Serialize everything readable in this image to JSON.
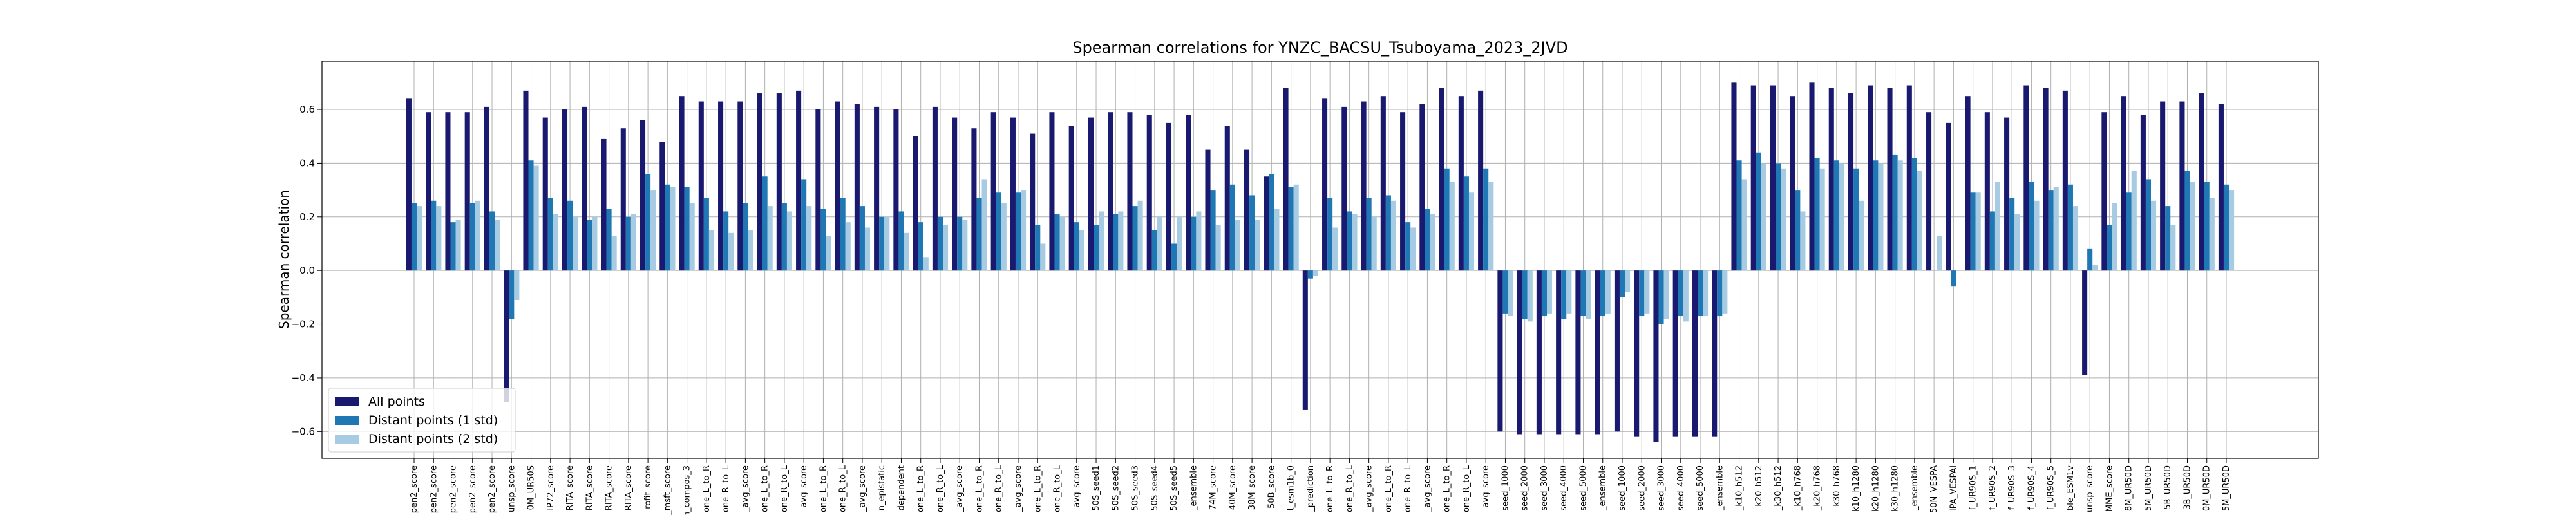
{
  "chart_data": {
    "type": "bar",
    "title": "Spearman correlations for YNZC_BACSU_Tsuboyama_2023_2JVD",
    "ylabel": "Spearman correlation",
    "categories": [
      "pen2_score",
      "pen2_score",
      "pen2_score",
      "pen2_score",
      "pen2_score",
      "unsp_score",
      "0M_UR50S",
      "IP72_score",
      "RITA_score",
      "RITA_score",
      "RITA_score",
      "RITA_score",
      "rofit_score",
      "_msft_score",
      "n_compos_3",
      "one_L_to_R",
      "one_R_to_L",
      "_avg_score",
      "one_L_to_R",
      "one_R_to_L",
      "_avg_score",
      "one_L_to_R",
      "one_R_to_L",
      "_avg_score",
      "n_epistatic",
      "dependent",
      "one_L_to_R",
      "one_R_to_L",
      "_avg_score",
      "one_L_to_R",
      "one_R_to_L",
      "_avg_score",
      "one_L_to_R",
      "one_R_to_L",
      "_avg_score",
      "50S_seed1",
      "50S_seed2",
      "50S_seed3",
      "50S_seed4",
      "50S_seed5",
      "_ensemble",
      "74M_score",
      "40M_score",
      "38M_score",
      "50B_score",
      "t_esm1b_0",
      "_prediction",
      "one_L_to_R",
      "one_R_to_L",
      "_avg_score",
      "one_L_to_R",
      "one_R_to_L",
      "_avg_score",
      "one_L_to_R",
      "one_R_to_L",
      "_avg_score",
      "seed_1000",
      "seed_2000",
      "seed_3000",
      "seed_4000",
      "seed_5000",
      "_ensemble",
      "seed_1000",
      "seed_2000",
      "seed_3000",
      "seed_4000",
      "seed_5000",
      "_ensemble",
      "_k10_h512",
      "_k20_h512",
      "_k30_h512",
      "_k10_h768",
      "_k20_h768",
      "_k30_h768",
      "k10_h1280",
      "k20_h1280",
      "k30_h1280",
      "_ensemble",
      "50N_VESPA",
      "IPA_VESPAl",
      "f_UR90S_1",
      "f_UR90S_2",
      "f_UR90S_3",
      "f_UR90S_4",
      "f_UR90S_5",
      "ble_ESM1v",
      "unsp_score",
      "MME_score",
      "8M_UR50D",
      "5M_UR50D",
      "5B_UR50D",
      "3B_UR50D",
      "0M_UR50D",
      "5M_UR50D"
    ],
    "series": [
      {
        "name": "All points",
        "color": "#191970",
        "values": [
          0.64,
          0.59,
          0.59,
          0.59,
          0.61,
          -0.49,
          0.67,
          0.57,
          0.6,
          0.61,
          0.49,
          0.53,
          0.56,
          0.48,
          0.65,
          0.63,
          0.63,
          0.63,
          0.66,
          0.66,
          0.67,
          0.6,
          0.63,
          0.62,
          0.61,
          0.6,
          0.5,
          0.61,
          0.57,
          0.53,
          0.59,
          0.57,
          0.51,
          0.59,
          0.54,
          0.57,
          0.59,
          0.59,
          0.58,
          0.55,
          0.58,
          0.45,
          0.54,
          0.45,
          0.35,
          0.68,
          -0.52,
          0.64,
          0.61,
          0.63,
          0.65,
          0.59,
          0.62,
          0.68,
          0.65,
          0.67,
          -0.6,
          -0.61,
          -0.61,
          -0.61,
          -0.61,
          -0.61,
          -0.6,
          -0.62,
          -0.64,
          -0.62,
          -0.62,
          -0.62,
          0.7,
          0.69,
          0.69,
          0.65,
          0.7,
          0.68,
          0.66,
          0.69,
          0.68,
          0.69,
          0.59,
          0.55,
          0.65,
          0.59,
          0.57,
          0.69,
          0.68,
          0.67,
          -0.39,
          0.59,
          0.65,
          0.58,
          0.63,
          0.63,
          0.66,
          0.62
        ]
      },
      {
        "name": "Distant points (1 std)",
        "color": "#1f77b4",
        "values": [
          0.25,
          0.26,
          0.18,
          0.25,
          0.22,
          -0.18,
          0.41,
          0.27,
          0.26,
          0.19,
          0.23,
          0.2,
          0.36,
          0.32,
          0.31,
          0.27,
          0.22,
          0.25,
          0.35,
          0.25,
          0.34,
          0.23,
          0.27,
          0.24,
          0.2,
          0.22,
          0.18,
          0.2,
          0.2,
          0.27,
          0.29,
          0.29,
          0.17,
          0.21,
          0.18,
          0.17,
          0.21,
          0.24,
          0.15,
          0.1,
          0.2,
          0.3,
          0.32,
          0.28,
          0.36,
          0.31,
          -0.03,
          0.27,
          0.22,
          0.27,
          0.28,
          0.18,
          0.23,
          0.38,
          0.35,
          0.38,
          -0.16,
          -0.18,
          -0.17,
          -0.18,
          -0.17,
          -0.17,
          -0.1,
          -0.17,
          -0.2,
          -0.17,
          -0.17,
          -0.17,
          0.41,
          0.44,
          0.4,
          0.3,
          0.42,
          0.41,
          0.38,
          0.41,
          0.43,
          0.42,
          0.0,
          -0.06,
          0.29,
          0.22,
          0.27,
          0.33,
          0.3,
          0.32,
          0.08,
          0.17,
          0.29,
          0.34,
          0.24,
          0.37,
          0.33,
          0.32
        ]
      },
      {
        "name": "Distant points (2 std)",
        "color": "#a6cbe3",
        "values": [
          0.24,
          0.24,
          0.19,
          0.26,
          0.19,
          -0.11,
          0.39,
          0.21,
          0.2,
          0.2,
          0.13,
          0.21,
          0.3,
          0.31,
          0.25,
          0.15,
          0.14,
          0.15,
          0.24,
          0.22,
          0.24,
          0.13,
          0.18,
          0.16,
          0.2,
          0.14,
          0.05,
          0.17,
          0.19,
          0.34,
          0.25,
          0.3,
          0.1,
          0.2,
          0.15,
          0.22,
          0.22,
          0.26,
          0.2,
          0.2,
          0.22,
          0.17,
          0.19,
          0.19,
          0.23,
          0.32,
          -0.02,
          0.16,
          0.21,
          0.2,
          0.26,
          0.16,
          0.21,
          0.33,
          0.29,
          0.33,
          -0.17,
          -0.19,
          -0.16,
          -0.16,
          -0.18,
          -0.16,
          -0.08,
          -0.16,
          -0.18,
          -0.19,
          -0.17,
          -0.16,
          0.34,
          0.4,
          0.38,
          0.22,
          0.38,
          0.4,
          0.26,
          0.4,
          0.41,
          0.37,
          0.13,
          0.0,
          0.29,
          0.33,
          0.21,
          0.26,
          0.31,
          0.24,
          0.02,
          0.25,
          0.37,
          0.26,
          0.17,
          0.33,
          0.27,
          0.3
        ]
      }
    ],
    "ylim": [
      -0.7,
      0.78
    ],
    "yticks": [
      {
        "value": -0.6,
        "label": "−0.6"
      },
      {
        "value": -0.4,
        "label": "−0.4"
      },
      {
        "value": -0.2,
        "label": "−0.2"
      },
      {
        "value": 0,
        "label": "0.0"
      },
      0.2,
      0.4,
      0.6
    ],
    "grid": true,
    "legend": "lower left"
  }
}
